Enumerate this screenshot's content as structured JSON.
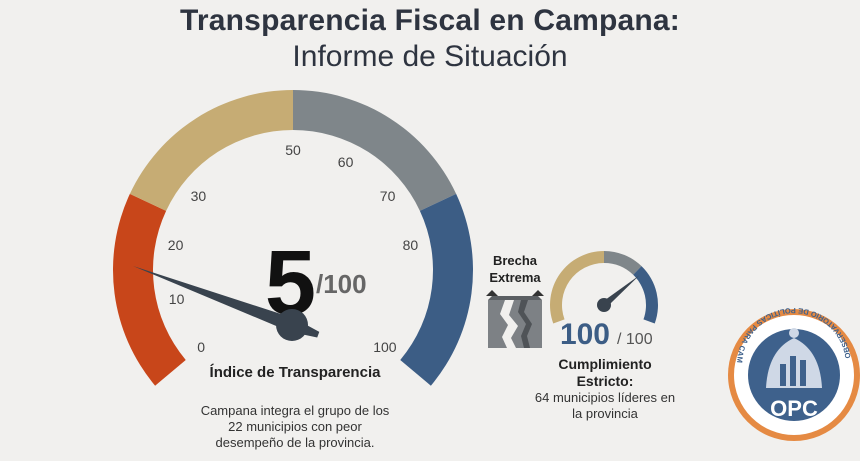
{
  "header": {
    "title": "Transparencia Fiscal en Campana:",
    "subtitle": "Informe de Situación"
  },
  "main_gauge": {
    "value": 5,
    "value_text": "5",
    "max_text": "/100",
    "ticks": [
      "0",
      "10",
      "20",
      "30",
      "50",
      "60",
      "70",
      "80",
      "100"
    ],
    "tick_values": [
      0,
      10,
      20,
      30,
      50,
      60,
      70,
      80,
      100
    ],
    "label": "Índice de Transparencia",
    "description": "Campana integra el grupo de los 22 municipios con peor desempeño de la provincia.",
    "segments": [
      {
        "from": 0,
        "to": 25,
        "color": "#c8461a"
      },
      {
        "from": 25,
        "to": 50,
        "color": "#c6ac74"
      },
      {
        "from": 50,
        "to": 75,
        "color": "#7f868a"
      },
      {
        "from": 75,
        "to": 100,
        "color": "#3c5d85"
      }
    ]
  },
  "gap": {
    "label": "Brecha Extrema"
  },
  "compliance_gauge": {
    "value": 100,
    "value_text": "100",
    "max_text": "/ 100",
    "title": "Cumplimiento Estricto:",
    "description": "64 municipios líderes en la provincia"
  },
  "logo": {
    "acronym": "OPC",
    "ring_text": "OBSERVATORIO DE POLÍTICAS PARA CAMPANA"
  },
  "colors": {
    "red": "#c8461a",
    "tan": "#c6ac74",
    "gray": "#7f868a",
    "blue": "#3c5d85",
    "needle": "#39434e",
    "logo_orange": "#e58a43",
    "logo_blue": "#3e618c"
  }
}
